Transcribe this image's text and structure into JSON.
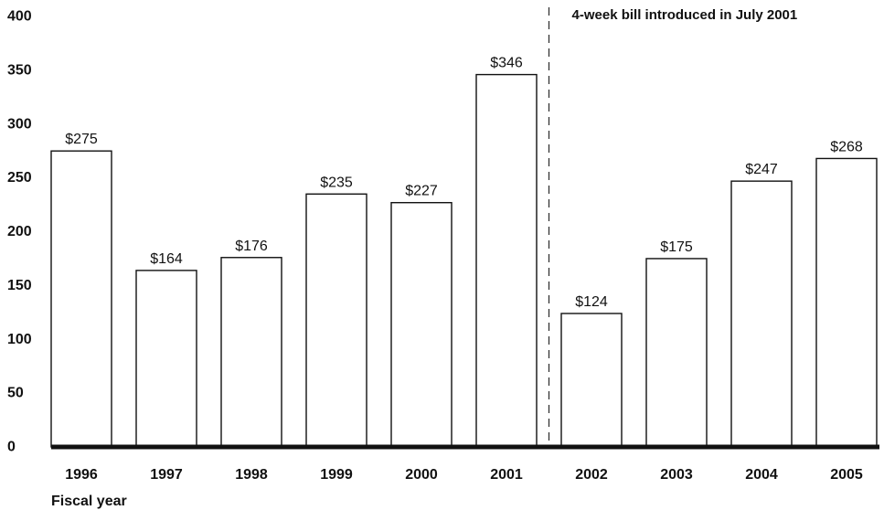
{
  "chart_data": {
    "type": "bar",
    "title": "",
    "xlabel": "Fiscal year",
    "ylabel": "",
    "ylim": [
      0,
      400
    ],
    "yticks": [
      0,
      50,
      100,
      150,
      200,
      250,
      300,
      350,
      400
    ],
    "categories": [
      "1996",
      "1997",
      "1998",
      "1999",
      "2000",
      "2001",
      "2002",
      "2003",
      "2004",
      "2005"
    ],
    "values": [
      275,
      164,
      176,
      235,
      227,
      346,
      124,
      175,
      247,
      268
    ],
    "value_labels": [
      "$275",
      "$164",
      "$176",
      "$235",
      "$227",
      "$346",
      "$124",
      "$175",
      "$247",
      "$268"
    ],
    "grid": false,
    "annotation": {
      "text": "4-week bill introduced in July 2001",
      "between": [
        "2001",
        "2002"
      ],
      "style": "dashed vertical line"
    }
  }
}
